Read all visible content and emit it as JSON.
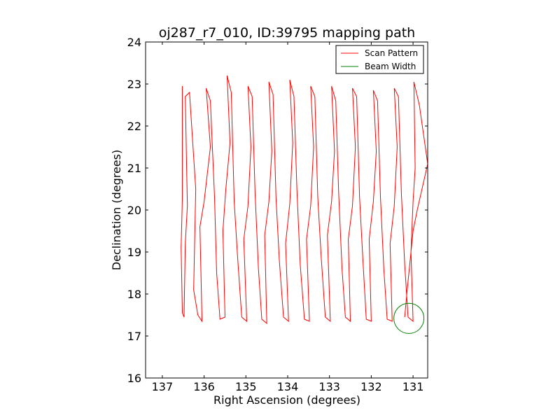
{
  "chart_data": {
    "type": "line",
    "title": "oj287_r7_010, ID:39795 mapping path",
    "xlabel": "Right Ascension (degrees)",
    "ylabel": "Declination (degrees)",
    "xlim": [
      137.4,
      130.65
    ],
    "ylim": [
      16,
      24
    ],
    "x_reversed": true,
    "grid": false,
    "legend_position": "upper right",
    "x_ticks": [
      {
        "value": 137,
        "label": "137"
      },
      {
        "value": 136,
        "label": "136"
      },
      {
        "value": 135,
        "label": "135"
      },
      {
        "value": 134,
        "label": "134"
      },
      {
        "value": 133,
        "label": "133"
      },
      {
        "value": 132,
        "label": "132"
      },
      {
        "value": 131,
        "label": "131"
      }
    ],
    "y_ticks": [
      {
        "value": 16,
        "label": "16"
      },
      {
        "value": 17,
        "label": "17"
      },
      {
        "value": 18,
        "label": "18"
      },
      {
        "value": 19,
        "label": "19"
      },
      {
        "value": 20,
        "label": "20"
      },
      {
        "value": 21,
        "label": "21"
      },
      {
        "value": 22,
        "label": "22"
      },
      {
        "value": 23,
        "label": "23"
      },
      {
        "value": 24,
        "label": "24"
      }
    ],
    "series": [
      {
        "name": "Scan Pattern",
        "color": "#ff0000",
        "points": [
          [
            136.52,
            22.95
          ],
          [
            136.52,
            20.3
          ],
          [
            136.55,
            19.1
          ],
          [
            136.52,
            17.55
          ],
          [
            136.48,
            17.45
          ],
          [
            136.45,
            19.2
          ],
          [
            136.4,
            20.1
          ],
          [
            136.42,
            21.1
          ],
          [
            136.45,
            22.7
          ],
          [
            136.35,
            22.8
          ],
          [
            136.2,
            20.5
          ],
          [
            136.25,
            18.1
          ],
          [
            136.15,
            17.5
          ],
          [
            136.05,
            17.35
          ],
          [
            136.1,
            19.6
          ],
          [
            136.0,
            20.2
          ],
          [
            135.85,
            21.5
          ],
          [
            135.95,
            22.9
          ],
          [
            135.85,
            22.6
          ],
          [
            135.75,
            20.3
          ],
          [
            135.7,
            18.5
          ],
          [
            135.62,
            17.4
          ],
          [
            135.5,
            17.45
          ],
          [
            135.55,
            19.5
          ],
          [
            135.48,
            20.5
          ],
          [
            135.38,
            21.6
          ],
          [
            135.45,
            23.2
          ],
          [
            135.35,
            22.8
          ],
          [
            135.28,
            20.2
          ],
          [
            135.2,
            18.9
          ],
          [
            135.1,
            17.45
          ],
          [
            134.98,
            17.35
          ],
          [
            135.05,
            19.3
          ],
          [
            134.95,
            20.1
          ],
          [
            134.88,
            21.5
          ],
          [
            134.95,
            22.95
          ],
          [
            134.85,
            22.7
          ],
          [
            134.78,
            20.4
          ],
          [
            134.7,
            18.6
          ],
          [
            134.62,
            17.4
          ],
          [
            134.5,
            17.3
          ],
          [
            134.55,
            19.4
          ],
          [
            134.45,
            20.2
          ],
          [
            134.38,
            21.4
          ],
          [
            134.45,
            23.05
          ],
          [
            134.35,
            22.75
          ],
          [
            134.28,
            20.3
          ],
          [
            134.2,
            18.8
          ],
          [
            134.1,
            17.45
          ],
          [
            133.98,
            17.35
          ],
          [
            134.05,
            19.2
          ],
          [
            133.95,
            20.15
          ],
          [
            133.88,
            21.6
          ],
          [
            133.95,
            23.1
          ],
          [
            133.85,
            22.7
          ],
          [
            133.78,
            20.5
          ],
          [
            133.7,
            18.7
          ],
          [
            133.6,
            17.4
          ],
          [
            133.48,
            17.35
          ],
          [
            133.55,
            19.3
          ],
          [
            133.45,
            20.1
          ],
          [
            133.38,
            21.5
          ],
          [
            133.45,
            22.95
          ],
          [
            133.35,
            22.7
          ],
          [
            133.28,
            20.3
          ],
          [
            133.2,
            18.9
          ],
          [
            133.1,
            17.45
          ],
          [
            132.98,
            17.35
          ],
          [
            133.05,
            19.4
          ],
          [
            132.95,
            20.2
          ],
          [
            132.88,
            21.4
          ],
          [
            132.95,
            22.95
          ],
          [
            132.85,
            22.6
          ],
          [
            132.78,
            20.4
          ],
          [
            132.7,
            18.6
          ],
          [
            132.62,
            17.45
          ],
          [
            132.5,
            17.35
          ],
          [
            132.55,
            19.3
          ],
          [
            132.45,
            20.1
          ],
          [
            132.38,
            21.5
          ],
          [
            132.45,
            22.9
          ],
          [
            132.35,
            22.7
          ],
          [
            132.28,
            20.3
          ],
          [
            132.2,
            18.8
          ],
          [
            132.12,
            17.4
          ],
          [
            132.0,
            17.35
          ],
          [
            132.05,
            19.3
          ],
          [
            131.95,
            20.2
          ],
          [
            131.88,
            21.4
          ],
          [
            131.95,
            22.85
          ],
          [
            131.85,
            22.6
          ],
          [
            131.78,
            20.3
          ],
          [
            131.7,
            18.6
          ],
          [
            131.62,
            17.4
          ],
          [
            131.5,
            17.35
          ],
          [
            131.55,
            19.2
          ],
          [
            131.45,
            20.1
          ],
          [
            131.38,
            21.5
          ],
          [
            131.45,
            22.9
          ],
          [
            131.35,
            22.7
          ],
          [
            131.28,
            20.4
          ],
          [
            131.2,
            18.7
          ],
          [
            131.12,
            17.45
          ],
          [
            131.0,
            17.35
          ],
          [
            131.05,
            19.0
          ],
          [
            131.0,
            20.2
          ],
          [
            130.95,
            21.0
          ],
          [
            130.98,
            23.05
          ],
          [
            130.85,
            22.5
          ],
          [
            130.65,
            21.1
          ],
          [
            130.9,
            20.0
          ],
          [
            131.0,
            19.5
          ],
          [
            131.15,
            18.0
          ],
          [
            131.2,
            17.45
          ]
        ]
      }
    ],
    "beam_width": {
      "name": "Beam Width",
      "color": "#008000",
      "center_ra": 131.1,
      "center_dec": 17.42,
      "radius_deg": 0.36
    },
    "legend": [
      {
        "label": "Scan Pattern",
        "color": "#ff0000"
      },
      {
        "label": "Beam Width",
        "color": "#008000"
      }
    ]
  }
}
